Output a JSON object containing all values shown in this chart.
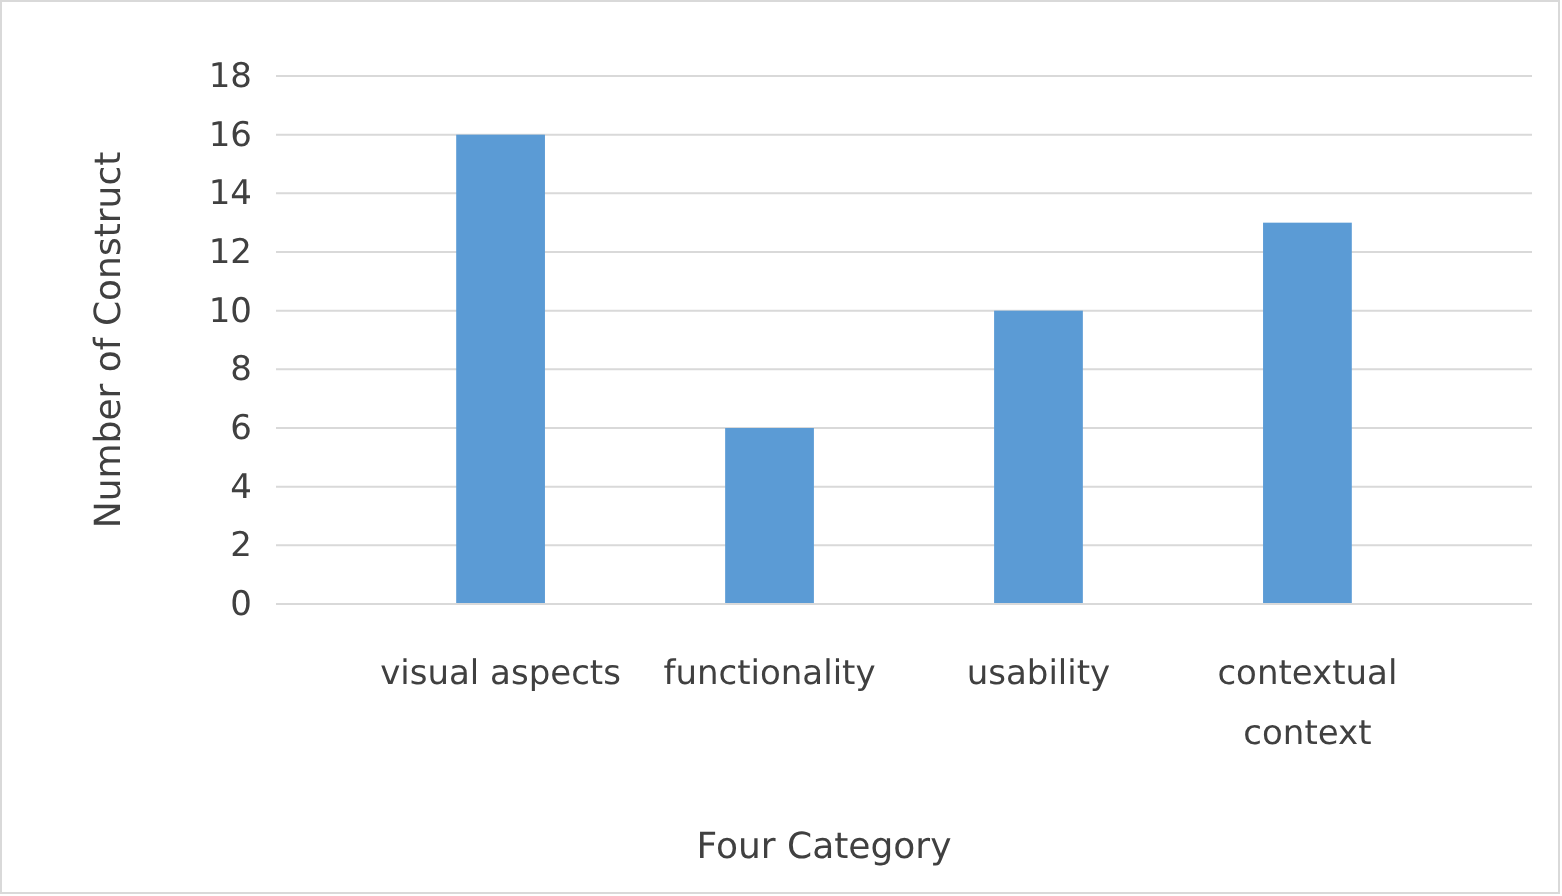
{
  "chart_data": {
    "type": "bar",
    "xlabel": "Four Category",
    "ylabel": "Number of Construct",
    "categories": [
      "visual aspects",
      "functionality",
      "usability",
      "contextual context"
    ],
    "values": [
      16,
      6,
      10,
      13
    ],
    "color": "#5b9bd5",
    "ylim": [
      0,
      18
    ],
    "yticks": [
      0,
      2,
      4,
      6,
      8,
      10,
      12,
      14,
      16,
      18
    ],
    "grid": "y"
  }
}
